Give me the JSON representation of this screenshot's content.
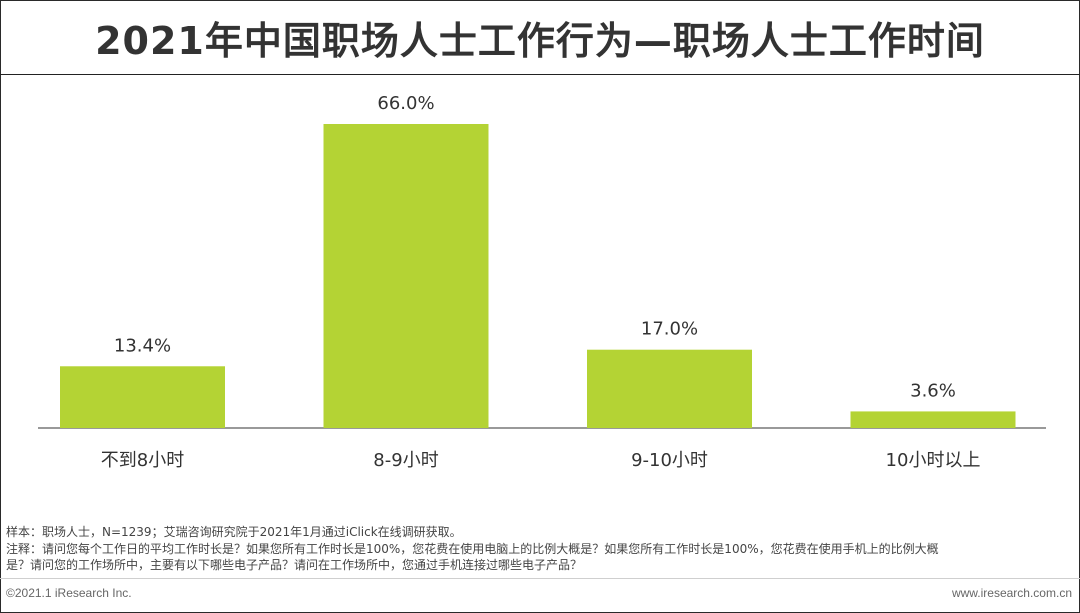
{
  "title": "2021年中国职场人士工作行为—职场人士工作时间",
  "chart_data": {
    "type": "bar",
    "categories": [
      "不到8小时",
      "8-9小时",
      "9-10小时",
      "10小时以上"
    ],
    "values": [
      13.4,
      66.0,
      17.0,
      3.6
    ],
    "value_labels": [
      "13.4%",
      "66.0%",
      "17.0%",
      "3.6%"
    ],
    "ylim": [
      0,
      66.0
    ],
    "bar_color": "#b4d334",
    "grid": false,
    "legend": "none"
  },
  "notes": {
    "sample": "样本：职场人士，N=1239；艾瑞咨询研究院于2021年1月通过iClick在线调研获取。",
    "note_line1": "注释：请问您每个工作日的平均工作时长是？如果您所有工作时长是100%，您花费在使用电脑上的比例大概是？如果您所有工作时长是100%，您花费在使用手机上的比例大概",
    "note_line2": "是？请问您的工作场所中，主要有以下哪些电子产品？请问在工作场所中，您通过手机连接过哪些电子产品？"
  },
  "footer": {
    "copyright": "©2021.1 iResearch Inc.",
    "website": "www.iresearch.com.cn"
  }
}
